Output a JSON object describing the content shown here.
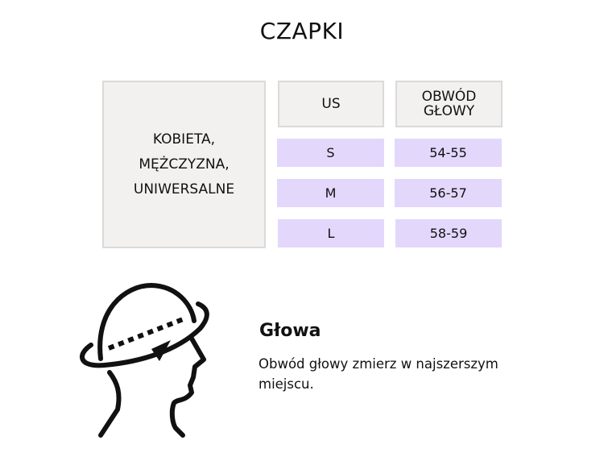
{
  "title": "CZAPKI",
  "table": {
    "category": "KOBIETA,\nMĘŻCZYZNA,\nUNIWERSALNE",
    "headers": [
      "US",
      "OBWÓD\nGŁOWY"
    ],
    "rows": [
      {
        "us": "S",
        "head": "54-55"
      },
      {
        "us": "M",
        "head": "56-57"
      },
      {
        "us": "L",
        "head": "58-59"
      }
    ]
  },
  "measure": {
    "icon": "head-measurement-icon",
    "heading": "Głowa",
    "description": "Obwód głowy zmierz w najszerszym miejscu."
  },
  "colors": {
    "header_bg": "#f3f1f0",
    "row_bg": "#e3d7fc"
  }
}
